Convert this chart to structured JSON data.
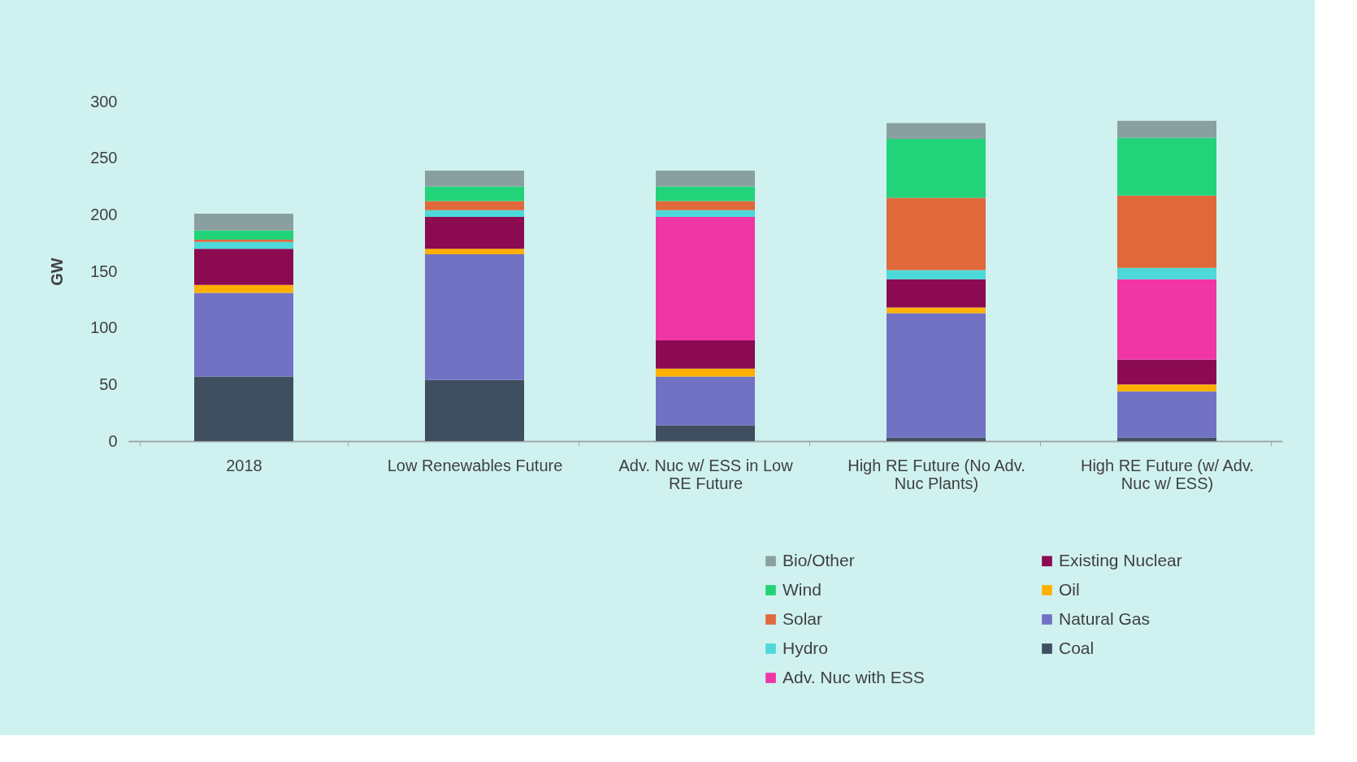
{
  "chart_data": {
    "type": "bar",
    "stacked": true,
    "ylabel": "GW",
    "categories": [
      "2018",
      "Low Renewables Future",
      "Adv. Nuc w/ ESS in Low RE Future",
      "High RE Future (No Adv. Nuc Plants)",
      "High RE Future (w/ Adv. Nuc w/ ESS)"
    ],
    "series": [
      {
        "name": "Coal",
        "color": "#3f4f5f",
        "values": [
          57,
          54,
          14,
          3,
          3
        ]
      },
      {
        "name": "Natural Gas",
        "color": "#7272c4",
        "values": [
          74,
          111,
          43,
          110,
          41
        ]
      },
      {
        "name": "Oil",
        "color": "#ffb000",
        "values": [
          7,
          5,
          7,
          5,
          6
        ]
      },
      {
        "name": "Existing Nuclear",
        "color": "#8b0a50",
        "values": [
          32,
          28,
          25,
          25,
          22
        ]
      },
      {
        "name": "Adv. Nuc with ESS",
        "color": "#f035a5",
        "values": [
          null,
          null,
          109,
          null,
          71
        ]
      },
      {
        "name": "Hydro",
        "color": "#4dd9d9",
        "values": [
          6,
          6,
          6,
          8,
          10
        ]
      },
      {
        "name": "Solar",
        "color": "#e0683a",
        "values": [
          2,
          8,
          8,
          64,
          64
        ]
      },
      {
        "name": "Wind",
        "color": "#22d37a",
        "values": [
          8,
          13,
          13,
          52,
          51
        ]
      },
      {
        "name": "Bio/Other",
        "color": "#8aa0a0",
        "values": [
          15,
          14,
          14,
          14,
          15
        ]
      }
    ],
    "ylim": [
      0,
      300
    ],
    "yticks": [
      0,
      50,
      100,
      150,
      200,
      250,
      300
    ],
    "grid": false,
    "legend": "bottom right"
  }
}
